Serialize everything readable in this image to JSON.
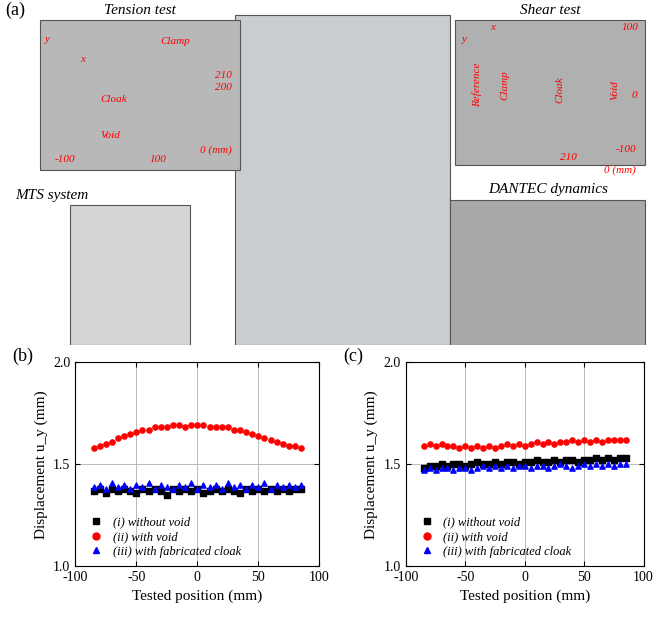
{
  "panel_a": {
    "label": "(a)",
    "captions": [
      "Tension test",
      "Shear test",
      "MTS system",
      "DANTEC dynamics"
    ],
    "tension_inset": [
      "y",
      "x",
      "Clamp",
      "210",
      "200",
      "Cloak",
      "Void",
      "-100",
      "100",
      "0 (mm)"
    ],
    "shear_inset": [
      "y",
      "x",
      "100",
      "Reference",
      "Clamp",
      "Cloak",
      "Void",
      "0",
      "-100",
      "210",
      "0 (mm)"
    ]
  },
  "chart_data": [
    {
      "type": "scatter",
      "title": "(b)",
      "x_label": "Tested position (mm)",
      "y_label": "Displacement u_y (mm)",
      "x": [
        -85,
        -80,
        -75,
        -70,
        -65,
        -60,
        -55,
        -50,
        -45,
        -40,
        -35,
        -30,
        -25,
        -20,
        -15,
        -10,
        -5,
        0,
        5,
        10,
        15,
        20,
        25,
        30,
        35,
        40,
        45,
        50,
        55,
        60,
        65,
        70,
        75,
        80,
        85
      ],
      "series": [
        {
          "name": "(i) without void",
          "color": "#000000",
          "marker": "square",
          "values": [
            1.37,
            1.38,
            1.36,
            1.38,
            1.37,
            1.38,
            1.37,
            1.36,
            1.38,
            1.37,
            1.38,
            1.37,
            1.35,
            1.38,
            1.37,
            1.38,
            1.37,
            1.38,
            1.36,
            1.37,
            1.38,
            1.37,
            1.38,
            1.37,
            1.36,
            1.38,
            1.37,
            1.38,
            1.37,
            1.38,
            1.37,
            1.38,
            1.37,
            1.38,
            1.38
          ]
        },
        {
          "name": "(ii) with void",
          "color": "#ff0000",
          "marker": "circle",
          "values": [
            1.58,
            1.59,
            1.6,
            1.61,
            1.63,
            1.64,
            1.65,
            1.66,
            1.67,
            1.67,
            1.68,
            1.68,
            1.68,
            1.69,
            1.69,
            1.68,
            1.69,
            1.69,
            1.69,
            1.68,
            1.68,
            1.68,
            1.68,
            1.67,
            1.67,
            1.66,
            1.65,
            1.64,
            1.63,
            1.62,
            1.61,
            1.6,
            1.59,
            1.59,
            1.58
          ]
        },
        {
          "name": "(iii) with fabricated cloak",
          "color": "#0000ff",
          "marker": "triangle",
          "values": [
            1.39,
            1.4,
            1.38,
            1.41,
            1.39,
            1.4,
            1.38,
            1.4,
            1.39,
            1.41,
            1.38,
            1.4,
            1.39,
            1.38,
            1.4,
            1.39,
            1.41,
            1.38,
            1.4,
            1.39,
            1.4,
            1.38,
            1.41,
            1.39,
            1.4,
            1.38,
            1.4,
            1.39,
            1.41,
            1.38,
            1.4,
            1.39,
            1.4,
            1.39,
            1.4
          ]
        }
      ],
      "xlim": [
        -100,
        100
      ],
      "xticks": [
        -100,
        -50,
        0,
        50,
        100
      ],
      "ylim": [
        1,
        2
      ],
      "yticks": [
        {
          "value": 1,
          "label": "1.0"
        },
        {
          "value": 1.5,
          "label": "1.5"
        },
        {
          "value": 2,
          "label": "2.0"
        }
      ],
      "grid": true,
      "legend": "lower left"
    },
    {
      "type": "scatter",
      "title": "(c)",
      "x_label": "Tested position (mm)",
      "y_label": "Displacement u_y (mm)",
      "x": [
        -85,
        -80,
        -75,
        -70,
        -65,
        -60,
        -55,
        -50,
        -45,
        -40,
        -35,
        -30,
        -25,
        -20,
        -15,
        -10,
        -5,
        0,
        5,
        10,
        15,
        20,
        25,
        30,
        35,
        40,
        45,
        50,
        55,
        60,
        65,
        70,
        75,
        80,
        85
      ],
      "series": [
        {
          "name": "(i) without void",
          "color": "#000000",
          "marker": "square",
          "values": [
            1.48,
            1.49,
            1.49,
            1.5,
            1.49,
            1.5,
            1.5,
            1.49,
            1.5,
            1.51,
            1.5,
            1.5,
            1.51,
            1.5,
            1.51,
            1.51,
            1.5,
            1.51,
            1.51,
            1.52,
            1.51,
            1.51,
            1.52,
            1.51,
            1.52,
            1.52,
            1.51,
            1.52,
            1.52,
            1.53,
            1.52,
            1.53,
            1.52,
            1.53,
            1.53
          ]
        },
        {
          "name": "(ii) with void",
          "color": "#ff0000",
          "marker": "circle",
          "values": [
            1.59,
            1.6,
            1.59,
            1.6,
            1.59,
            1.59,
            1.58,
            1.59,
            1.58,
            1.59,
            1.58,
            1.59,
            1.58,
            1.59,
            1.6,
            1.59,
            1.6,
            1.59,
            1.6,
            1.61,
            1.6,
            1.61,
            1.6,
            1.61,
            1.61,
            1.62,
            1.61,
            1.62,
            1.61,
            1.62,
            1.61,
            1.62,
            1.62,
            1.62,
            1.62
          ]
        },
        {
          "name": "(iii) with fabricated cloak",
          "color": "#0000ff",
          "marker": "triangle",
          "values": [
            1.47,
            1.48,
            1.47,
            1.48,
            1.48,
            1.47,
            1.48,
            1.48,
            1.47,
            1.48,
            1.49,
            1.48,
            1.49,
            1.48,
            1.49,
            1.48,
            1.49,
            1.49,
            1.48,
            1.49,
            1.49,
            1.48,
            1.49,
            1.5,
            1.49,
            1.48,
            1.49,
            1.5,
            1.49,
            1.5,
            1.49,
            1.5,
            1.49,
            1.5,
            1.5
          ]
        }
      ],
      "xlim": [
        -100,
        100
      ],
      "xticks": [
        -100,
        -50,
        0,
        50,
        100
      ],
      "ylim": [
        1,
        2
      ],
      "yticks": [
        {
          "value": 1,
          "label": "1.0"
        },
        {
          "value": 1.5,
          "label": "1.5"
        },
        {
          "value": 2,
          "label": "2.0"
        }
      ],
      "grid": true,
      "legend": "lower left"
    }
  ]
}
